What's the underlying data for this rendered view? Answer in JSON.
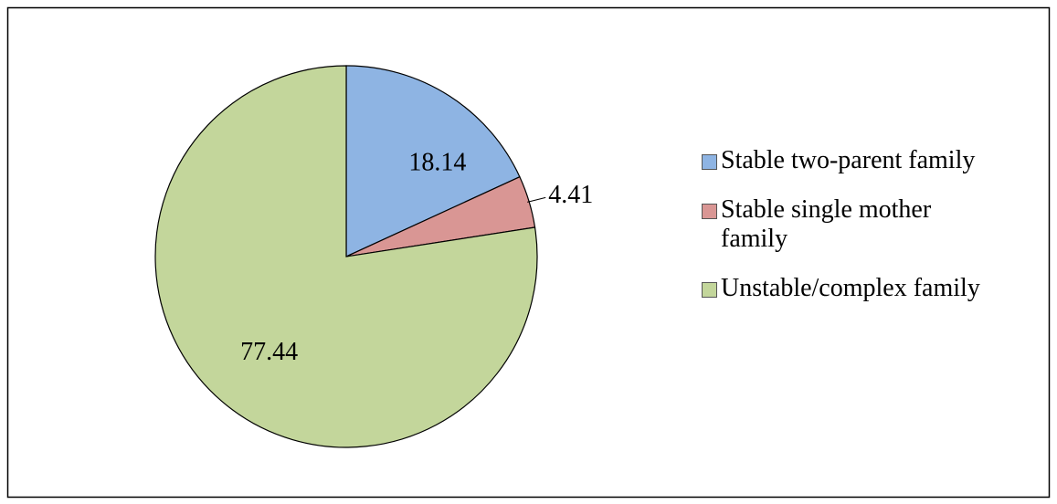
{
  "chart_data": {
    "type": "pie",
    "categories": [
      "Stable two-parent family",
      "Stable single mother family",
      "Unstable/complex family"
    ],
    "values": [
      18.14,
      4.41,
      77.44
    ],
    "colors": [
      "#8eb4e3",
      "#d99694",
      "#c3d69b"
    ],
    "legend": "right"
  }
}
